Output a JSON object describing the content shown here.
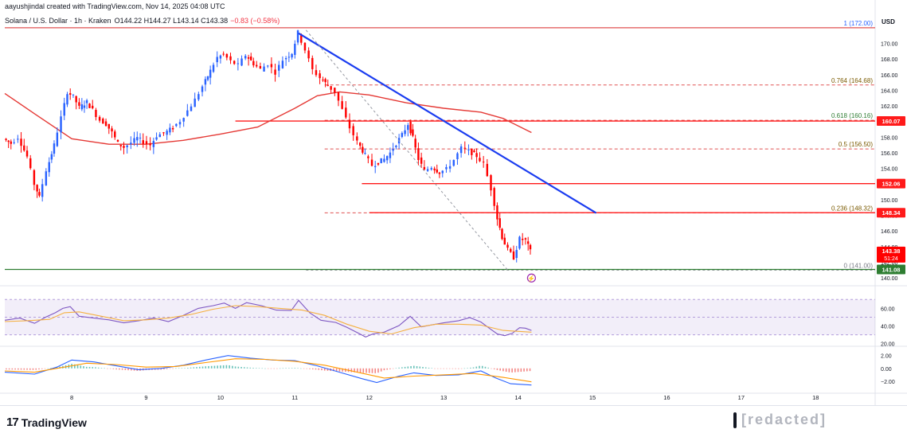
{
  "header": {
    "attribution": "aayushjindal created with TradingView.com, Nov 14, 2025 04:08 UTC",
    "symbol": "Solana / U.S. Dollar · 1h · Kraken",
    "ohlc": "O144.22 H144.27 L143.14 C143.38",
    "change": "−0.83 (−0.58%)",
    "currency": "USD"
  },
  "footer": {
    "logo_text": "TradingView",
    "logo_mark": "17",
    "watermark_text": "[redacted]"
  },
  "colors": {
    "up": "#2962ff",
    "down": "#ff0000",
    "moving_average": "#e53935",
    "trendline": "#1a3cf0",
    "resistance": "#ff1a1a",
    "fib": "#e05151",
    "support": "#2e7d32",
    "rsi_line": "#7e57c2",
    "rsi_signal": "#f5b041",
    "macd_line": "#2962ff",
    "macd_signal": "#ff9800"
  },
  "chart_data": [
    {
      "type": "candlestick",
      "title": "Solana / U.S. Dollar · 1h · Kraken",
      "x_labels": [
        "8",
        "9",
        "10",
        "11",
        "12",
        "13",
        "14",
        "15",
        "16",
        "17",
        "18"
      ],
      "y_ticks": [
        "140.00",
        "142.00",
        "144.00",
        "146.00",
        "148.00",
        "150.00",
        "152.00",
        "154.00",
        "156.00",
        "158.00",
        "160.00",
        "162.00",
        "164.00",
        "166.00",
        "168.00",
        "170.00"
      ],
      "ylim": [
        139.5,
        172.5
      ],
      "x_range_days": [
        7.1,
        18.8
      ],
      "grid": false,
      "price_path": [
        [
          7.1,
          157.8
        ],
        [
          7.2,
          157.2
        ],
        [
          7.3,
          158.0
        ],
        [
          7.42,
          155.5
        ],
        [
          7.52,
          152.0
        ],
        [
          7.58,
          150.3
        ],
        [
          7.68,
          153.8
        ],
        [
          7.78,
          157.0
        ],
        [
          7.88,
          160.5
        ],
        [
          7.96,
          163.8
        ],
        [
          8.04,
          163.2
        ],
        [
          8.12,
          161.8
        ],
        [
          8.22,
          162.5
        ],
        [
          8.3,
          161.5
        ],
        [
          8.4,
          160.2
        ],
        [
          8.48,
          159.7
        ],
        [
          8.56,
          158.6
        ],
        [
          8.64,
          157.2
        ],
        [
          8.72,
          156.7
        ],
        [
          8.82,
          157.3
        ],
        [
          8.9,
          157.9
        ],
        [
          8.98,
          157.4
        ],
        [
          9.08,
          157.0
        ],
        [
          9.16,
          158.2
        ],
        [
          9.26,
          158.5
        ],
        [
          9.38,
          159.2
        ],
        [
          9.48,
          160.1
        ],
        [
          9.58,
          161.4
        ],
        [
          9.68,
          162.8
        ],
        [
          9.78,
          164.5
        ],
        [
          9.88,
          166.5
        ],
        [
          9.98,
          168.2
        ],
        [
          10.06,
          168.6
        ],
        [
          10.16,
          167.7
        ],
        [
          10.26,
          167.2
        ],
        [
          10.36,
          168.5
        ],
        [
          10.46,
          167.4
        ],
        [
          10.56,
          166.7
        ],
        [
          10.66,
          167.4
        ],
        [
          10.76,
          166.3
        ],
        [
          10.86,
          167.9
        ],
        [
          10.98,
          168.8
        ],
        [
          11.06,
          171.4
        ],
        [
          11.16,
          169.2
        ],
        [
          11.26,
          166.6
        ],
        [
          11.36,
          165.6
        ],
        [
          11.46,
          164.6
        ],
        [
          11.56,
          163.8
        ],
        [
          11.66,
          161.5
        ],
        [
          11.76,
          159.2
        ],
        [
          11.86,
          157.4
        ],
        [
          11.96,
          155.7
        ],
        [
          12.06,
          154.4
        ],
        [
          12.14,
          154.8
        ],
        [
          12.22,
          155.2
        ],
        [
          12.3,
          156.0
        ],
        [
          12.38,
          157.2
        ],
        [
          12.46,
          158.3
        ],
        [
          12.54,
          159.7
        ],
        [
          12.6,
          157.9
        ],
        [
          12.68,
          155.2
        ],
        [
          12.76,
          153.7
        ],
        [
          12.86,
          154.2
        ],
        [
          12.96,
          153.5
        ],
        [
          13.06,
          153.9
        ],
        [
          13.16,
          155.1
        ],
        [
          13.26,
          156.6
        ],
        [
          13.36,
          156.2
        ],
        [
          13.46,
          155.6
        ],
        [
          13.56,
          154.6
        ],
        [
          13.66,
          151.4
        ],
        [
          13.74,
          147.6
        ],
        [
          13.8,
          145.2
        ],
        [
          13.88,
          143.6
        ],
        [
          13.96,
          142.6
        ],
        [
          14.04,
          145.0
        ],
        [
          14.12,
          144.8
        ],
        [
          14.18,
          143.4
        ]
      ],
      "last_price": 143.38,
      "countdown": "51:24",
      "moving_average": [
        [
          7.1,
          163.6
        ],
        [
          7.5,
          161.0
        ],
        [
          8.0,
          157.8
        ],
        [
          8.5,
          157.1
        ],
        [
          9.0,
          157.1
        ],
        [
          9.5,
          157.6
        ],
        [
          10.0,
          158.4
        ],
        [
          10.5,
          159.3
        ],
        [
          11.0,
          161.7
        ],
        [
          11.3,
          163.3
        ],
        [
          11.6,
          163.8
        ],
        [
          12.0,
          163.4
        ],
        [
          12.5,
          162.4
        ],
        [
          13.0,
          161.7
        ],
        [
          13.5,
          161.2
        ],
        [
          13.8,
          160.4
        ],
        [
          14.18,
          158.6
        ]
      ],
      "trendline": [
        [
          11.05,
          171.3
        ],
        [
          15.05,
          148.3
        ]
      ],
      "dashed_guide": [
        [
          11.15,
          171.7
        ],
        [
          13.86,
          141.0
        ]
      ],
      "fib_levels": [
        {
          "label": "1 (172.00)",
          "value": 172.0
        },
        {
          "label": "0.764 (164.68)",
          "value": 164.68
        },
        {
          "label": "0.618 (160.16)",
          "value": 160.16
        },
        {
          "label": "0.5 (156.50)",
          "value": 156.5
        },
        {
          "label": "0.236 (148.32)",
          "value": 148.32
        },
        {
          "label": "0 (141.00)",
          "value": 141.0
        }
      ],
      "horizontal_levels": [
        {
          "label": "160.07",
          "value": 160.07,
          "start_day": 10.2
        },
        {
          "label": "152.06",
          "value": 152.06,
          "start_day": 11.9
        },
        {
          "label": "148.34",
          "value": 148.34,
          "start_day": 12.0
        },
        {
          "label": "141.08",
          "value": 141.08,
          "start_day": 7.1
        }
      ]
    },
    {
      "type": "line",
      "title": "RSI",
      "y_ticks": [
        "60.00",
        "40.00",
        "20.00"
      ],
      "ylim": [
        17,
        82
      ],
      "band": [
        30,
        70
      ],
      "series": [
        {
          "values": [
            [
              7.1,
              46.5
            ],
            [
              7.3,
              49.0
            ],
            [
              7.5,
              43.0
            ],
            [
              7.65,
              50.0
            ],
            [
              7.78,
              55.0
            ],
            [
              7.88,
              60.0
            ],
            [
              7.98,
              62.0
            ],
            [
              8.1,
              51.0
            ],
            [
              8.3,
              49.0
            ],
            [
              8.5,
              47.0
            ],
            [
              8.7,
              43.5
            ],
            [
              8.9,
              46.0
            ],
            [
              9.1,
              49.0
            ],
            [
              9.3,
              45.0
            ],
            [
              9.5,
              52.0
            ],
            [
              9.7,
              60.0
            ],
            [
              9.9,
              63.0
            ],
            [
              10.05,
              66.0
            ],
            [
              10.2,
              60.0
            ],
            [
              10.35,
              66.5
            ],
            [
              10.55,
              63.0
            ],
            [
              10.75,
              58.0
            ],
            [
              10.95,
              57.5
            ],
            [
              11.05,
              69.0
            ],
            [
              11.2,
              55.0
            ],
            [
              11.35,
              46.5
            ],
            [
              11.55,
              44.0
            ],
            [
              11.7,
              38.5
            ],
            [
              11.85,
              32.0
            ],
            [
              11.95,
              27.5
            ],
            [
              12.05,
              31.0
            ],
            [
              12.2,
              33.0
            ],
            [
              12.4,
              40.5
            ],
            [
              12.55,
              51.0
            ],
            [
              12.7,
              39.0
            ],
            [
              12.85,
              41.5
            ],
            [
              13.0,
              43.5
            ],
            [
              13.2,
              46.0
            ],
            [
              13.35,
              49.5
            ],
            [
              13.5,
              44.5
            ],
            [
              13.62,
              37.0
            ],
            [
              13.72,
              31.0
            ],
            [
              13.82,
              29.0
            ],
            [
              13.92,
              31.5
            ],
            [
              14.02,
              38.0
            ],
            [
              14.1,
              37.5
            ],
            [
              14.18,
              35.0
            ]
          ]
        },
        {
          "values": [
            [
              7.1,
              45.0
            ],
            [
              7.4,
              46.0
            ],
            [
              7.7,
              47.5
            ],
            [
              7.9,
              55.0
            ],
            [
              8.1,
              56.0
            ],
            [
              8.4,
              51.0
            ],
            [
              8.7,
              46.0
            ],
            [
              9.0,
              47.0
            ],
            [
              9.3,
              49.0
            ],
            [
              9.6,
              53.0
            ],
            [
              9.9,
              59.0
            ],
            [
              10.2,
              63.0
            ],
            [
              10.5,
              62.0
            ],
            [
              10.8,
              60.0
            ],
            [
              11.1,
              58.0
            ],
            [
              11.4,
              52.0
            ],
            [
              11.7,
              42.0
            ],
            [
              12.0,
              34.0
            ],
            [
              12.3,
              31.0
            ],
            [
              12.6,
              38.0
            ],
            [
              12.9,
              42.0
            ],
            [
              13.2,
              42.0
            ],
            [
              13.5,
              41.0
            ],
            [
              13.8,
              35.0
            ],
            [
              14.18,
              33.0
            ]
          ]
        }
      ]
    },
    {
      "type": "bar",
      "title": "MACD",
      "y_ticks": [
        "2.00",
        "0.00",
        "−2.00"
      ],
      "ylim": [
        -3.5,
        3.2
      ],
      "series": [
        {
          "values": [
            [
              7.1,
              -0.6
            ],
            [
              7.5,
              -0.9
            ],
            [
              7.8,
              0.2
            ],
            [
              8.0,
              1.3
            ],
            [
              8.3,
              1.0
            ],
            [
              8.6,
              0.4
            ],
            [
              8.9,
              -0.2
            ],
            [
              9.2,
              0.0
            ],
            [
              9.5,
              0.5
            ],
            [
              9.8,
              1.3
            ],
            [
              10.1,
              2.0
            ],
            [
              10.4,
              1.6
            ],
            [
              10.7,
              1.3
            ],
            [
              11.0,
              1.2
            ],
            [
              11.3,
              0.4
            ],
            [
              11.6,
              -0.6
            ],
            [
              11.9,
              -1.6
            ],
            [
              12.1,
              -2.2
            ],
            [
              12.4,
              -1.2
            ],
            [
              12.6,
              -0.7
            ],
            [
              12.9,
              -1.1
            ],
            [
              13.2,
              -1.0
            ],
            [
              13.5,
              -0.4
            ],
            [
              13.7,
              -1.5
            ],
            [
              13.9,
              -2.4
            ],
            [
              14.18,
              -2.6
            ]
          ]
        },
        {
          "values": [
            [
              7.1,
              -0.4
            ],
            [
              7.5,
              -0.6
            ],
            [
              7.9,
              0.2
            ],
            [
              8.2,
              0.8
            ],
            [
              8.6,
              0.6
            ],
            [
              9.0,
              0.2
            ],
            [
              9.4,
              0.3
            ],
            [
              9.8,
              0.9
            ],
            [
              10.2,
              1.5
            ],
            [
              10.6,
              1.4
            ],
            [
              11.0,
              1.1
            ],
            [
              11.4,
              0.5
            ],
            [
              11.8,
              -0.5
            ],
            [
              12.2,
              -1.5
            ],
            [
              12.6,
              -1.2
            ],
            [
              13.0,
              -1.0
            ],
            [
              13.4,
              -0.8
            ],
            [
              13.8,
              -1.4
            ],
            [
              14.18,
              -2.1
            ]
          ]
        }
      ]
    }
  ]
}
